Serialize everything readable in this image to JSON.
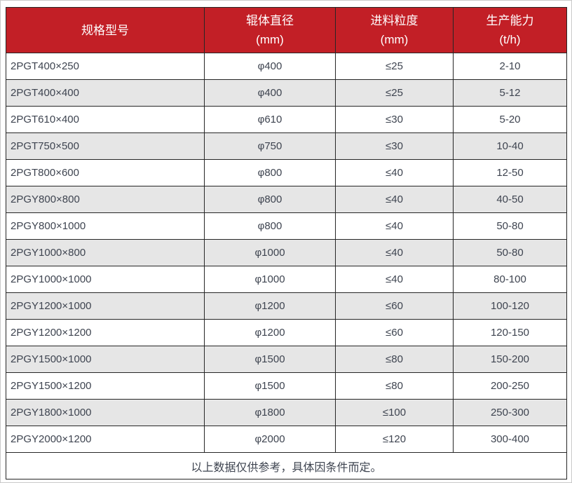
{
  "colors": {
    "header_bg": "#c21f26",
    "header_text": "#ffffff",
    "row_bg": "#ffffff",
    "alt_row_bg": "#e6e6e6",
    "border": "#262626",
    "body_text": "#3e4450",
    "page_border": "#c9c9c9"
  },
  "table": {
    "headers": [
      {
        "line1": "规格型号",
        "line2": ""
      },
      {
        "line1": "辊体直径",
        "line2": "(mm)"
      },
      {
        "line1": "进料粒度",
        "line2": "(mm)"
      },
      {
        "line1": "生产能力",
        "line2": "(t/h)"
      }
    ]
  },
  "chart_data": {
    "type": "table",
    "columns": [
      "规格型号",
      "辊体直径 (mm)",
      "进料粒度 (mm)",
      "生产能力 (t/h)"
    ],
    "rows": [
      [
        "2PGT400×250",
        "φ400",
        "≤25",
        "2-10"
      ],
      [
        "2PGT400×400",
        "φ400",
        "≤25",
        "5-12"
      ],
      [
        "2PGT610×400",
        "φ610",
        "≤30",
        "5-20"
      ],
      [
        "2PGT750×500",
        "φ750",
        "≤30",
        "10-40"
      ],
      [
        "2PGT800×600",
        "φ800",
        "≤40",
        "12-50"
      ],
      [
        "2PGY800×800",
        "φ800",
        "≤40",
        "40-50"
      ],
      [
        "2PGY800×1000",
        "φ800",
        "≤40",
        "50-80"
      ],
      [
        "2PGY1000×800",
        "φ1000",
        "≤40",
        "50-80"
      ],
      [
        "2PGY1000×1000",
        "φ1000",
        "≤40",
        "80-100"
      ],
      [
        "2PGY1200×1000",
        "φ1200",
        "≤60",
        "100-120"
      ],
      [
        "2PGY1200×1200",
        "φ1200",
        "≤60",
        "120-150"
      ],
      [
        "2PGY1500×1000",
        "φ1500",
        "≤80",
        "150-200"
      ],
      [
        "2PGY1500×1200",
        "φ1500",
        "≤80",
        "200-250"
      ],
      [
        "2PGY1800×1000",
        "φ1800",
        "≤100",
        "250-300"
      ],
      [
        "2PGY2000×1200",
        "φ2000",
        "≤120",
        "300-400"
      ]
    ],
    "note": "以上数据仅供参考，具体因条件而定。"
  }
}
